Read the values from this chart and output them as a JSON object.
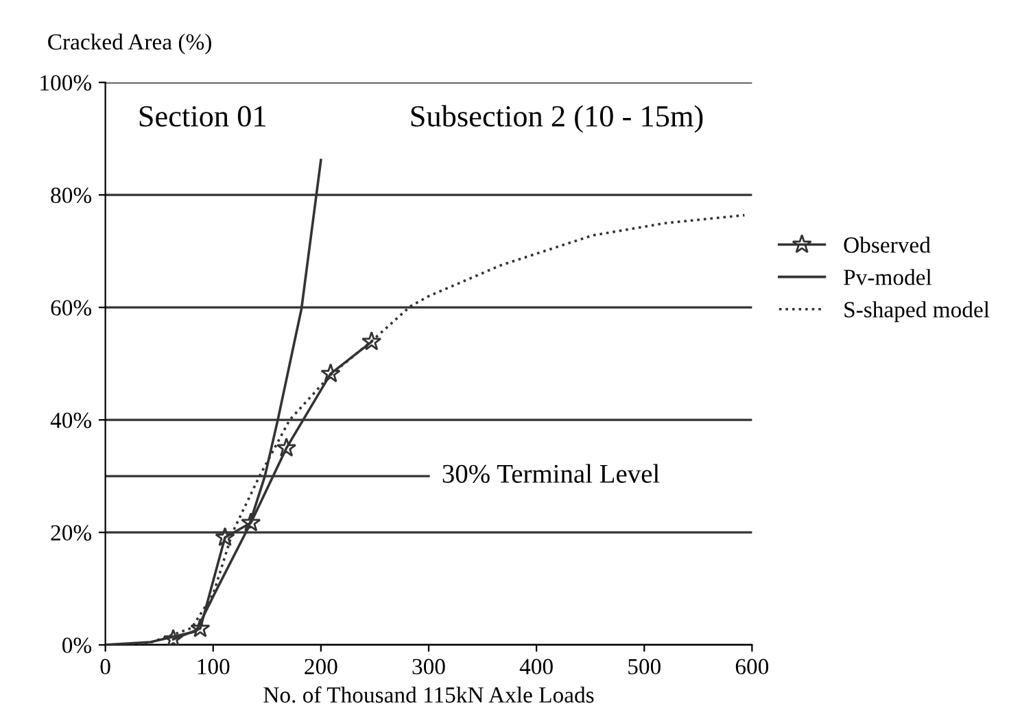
{
  "chart_data": {
    "type": "line",
    "ylabel": "Cracked Area (%)",
    "xlabel": "No. of Thousand 115kN Axle Loads",
    "annotations": [
      "Section 01",
      "Subsection 2 (10 - 15m)"
    ],
    "xlim": [
      0,
      600
    ],
    "xticks": [
      0,
      100,
      200,
      300,
      400,
      500,
      600
    ],
    "ylim": [
      0,
      100
    ],
    "yticks": [
      {
        "value": 0,
        "label": "0%"
      },
      {
        "value": 20,
        "label": "20%"
      },
      {
        "value": 40,
        "label": "40%"
      },
      {
        "value": 60,
        "label": "60%"
      },
      {
        "value": 80,
        "label": "80%"
      },
      {
        "value": 100,
        "label": "100%"
      }
    ],
    "grid": "y",
    "legend": "right",
    "ref_lines": [
      {
        "axis": "y",
        "value": 30,
        "label": "30% Terminal Level",
        "color": "#333333"
      }
    ],
    "series": [
      {
        "name": "Observed",
        "color": "#333333",
        "marker": "star",
        "line_style": "solid",
        "x": [
          63,
          88,
          111,
          135,
          168,
          209,
          247
        ],
        "values": [
          1.0,
          2.9,
          19.1,
          21.7,
          35,
          48.2,
          53.9
        ]
      },
      {
        "name": "Pv-model",
        "color": "#333333",
        "marker": "none",
        "line_style": "solid",
        "x": [
          0,
          42,
          84,
          101,
          133,
          148,
          160,
          182,
          200
        ],
        "values": [
          0,
          0.5,
          2.4,
          9,
          21,
          30,
          40,
          59.8,
          86.2
        ]
      },
      {
        "name": "S-shaped model",
        "color": "#333333",
        "marker": "none",
        "line_style": "dotted",
        "x": [
          0,
          40,
          80,
          100,
          118,
          143,
          171,
          209,
          247,
          283,
          300,
          367,
          452,
          520,
          593
        ],
        "values": [
          0,
          0.3,
          3,
          9,
          20,
          30,
          40,
          48,
          54,
          60.2,
          62,
          67.5,
          72.8,
          75,
          76.4
        ]
      }
    ]
  }
}
